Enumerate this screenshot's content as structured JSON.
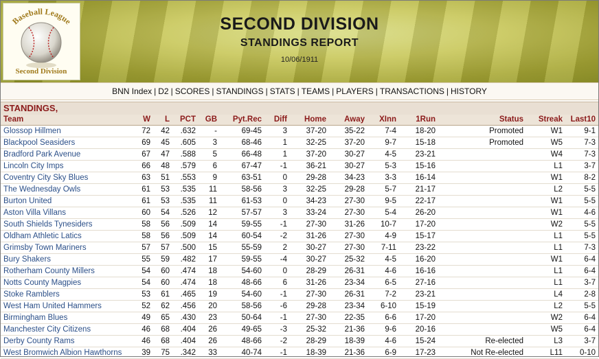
{
  "header": {
    "title": "SECOND DIVISION",
    "subtitle": "STANDINGS REPORT",
    "date": "10/06/1911",
    "logo_top_text": "Baseball League",
    "logo_bottom_text": "Second Division"
  },
  "nav": {
    "links": [
      "BNN Index",
      "D2",
      "SCORES",
      "STANDINGS",
      "STATS",
      "TEAMS",
      "PLAYERS",
      "TRANSACTIONS",
      "HISTORY"
    ]
  },
  "section_title": "STANDINGS,",
  "columns": [
    "Team",
    "W",
    "L",
    "PCT",
    "GB",
    "Pyt.Rec",
    "Diff",
    "Home",
    "Away",
    "XInn",
    "1Run",
    "Status",
    "Streak",
    "Last10"
  ],
  "rows": [
    [
      "Glossop Hillmen",
      "72",
      "42",
      ".632",
      "-",
      "69-45",
      "3",
      "37-20",
      "35-22",
      "7-4",
      "18-20",
      "Promoted",
      "W1",
      "9-1"
    ],
    [
      "Blackpool Seasiders",
      "69",
      "45",
      ".605",
      "3",
      "68-46",
      "1",
      "32-25",
      "37-20",
      "9-7",
      "15-18",
      "Promoted",
      "W5",
      "7-3"
    ],
    [
      "Bradford Park Avenue",
      "67",
      "47",
      ".588",
      "5",
      "66-48",
      "1",
      "37-20",
      "30-27",
      "4-5",
      "23-21",
      "",
      "W4",
      "7-3"
    ],
    [
      "Lincoln City Imps",
      "66",
      "48",
      ".579",
      "6",
      "67-47",
      "-1",
      "36-21",
      "30-27",
      "5-3",
      "15-16",
      "",
      "L1",
      "3-7"
    ],
    [
      "Coventry City Sky Blues",
      "63",
      "51",
      ".553",
      "9",
      "63-51",
      "0",
      "29-28",
      "34-23",
      "3-3",
      "16-14",
      "",
      "W1",
      "8-2"
    ],
    [
      "The Wednesday Owls",
      "61",
      "53",
      ".535",
      "11",
      "58-56",
      "3",
      "32-25",
      "29-28",
      "5-7",
      "21-17",
      "",
      "L2",
      "5-5"
    ],
    [
      "Burton United",
      "61",
      "53",
      ".535",
      "11",
      "61-53",
      "0",
      "34-23",
      "27-30",
      "9-5",
      "22-17",
      "",
      "W1",
      "5-5"
    ],
    [
      "Aston Villa Villans",
      "60",
      "54",
      ".526",
      "12",
      "57-57",
      "3",
      "33-24",
      "27-30",
      "5-4",
      "26-20",
      "",
      "W1",
      "4-6"
    ],
    [
      "South Shields Tynesiders",
      "58",
      "56",
      ".509",
      "14",
      "59-55",
      "-1",
      "27-30",
      "31-26",
      "10-7",
      "17-20",
      "",
      "W2",
      "5-5"
    ],
    [
      "Oldham Athletic Latics",
      "58",
      "56",
      ".509",
      "14",
      "60-54",
      "-2",
      "31-26",
      "27-30",
      "4-9",
      "15-17",
      "",
      "L1",
      "5-5"
    ],
    [
      "Grimsby Town Mariners",
      "57",
      "57",
      ".500",
      "15",
      "55-59",
      "2",
      "30-27",
      "27-30",
      "7-11",
      "23-22",
      "",
      "L1",
      "7-3"
    ],
    [
      "Bury Shakers",
      "55",
      "59",
      ".482",
      "17",
      "59-55",
      "-4",
      "30-27",
      "25-32",
      "4-5",
      "16-20",
      "",
      "W1",
      "6-4"
    ],
    [
      "Rotherham County Millers",
      "54",
      "60",
      ".474",
      "18",
      "54-60",
      "0",
      "28-29",
      "26-31",
      "4-6",
      "16-16",
      "",
      "L1",
      "6-4"
    ],
    [
      "Notts County Magpies",
      "54",
      "60",
      ".474",
      "18",
      "48-66",
      "6",
      "31-26",
      "23-34",
      "6-5",
      "27-16",
      "",
      "L1",
      "3-7"
    ],
    [
      "Stoke Ramblers",
      "53",
      "61",
      ".465",
      "19",
      "54-60",
      "-1",
      "27-30",
      "26-31",
      "7-2",
      "23-21",
      "",
      "L4",
      "2-8"
    ],
    [
      "West Ham United Hammers",
      "52",
      "62",
      ".456",
      "20",
      "58-56",
      "-6",
      "29-28",
      "23-34",
      "6-10",
      "15-19",
      "",
      "L2",
      "5-5"
    ],
    [
      "Birmingham Blues",
      "49",
      "65",
      ".430",
      "23",
      "50-64",
      "-1",
      "27-30",
      "22-35",
      "6-6",
      "17-20",
      "",
      "W2",
      "6-4"
    ],
    [
      "Manchester City Citizens",
      "46",
      "68",
      ".404",
      "26",
      "49-65",
      "-3",
      "25-32",
      "21-36",
      "9-6",
      "20-16",
      "",
      "W5",
      "6-4"
    ],
    [
      "Derby County Rams",
      "46",
      "68",
      ".404",
      "26",
      "48-66",
      "-2",
      "28-29",
      "18-39",
      "4-6",
      "15-24",
      "Re-elected",
      "L3",
      "3-7"
    ],
    [
      "West Bromwich Albion Hawthorns",
      "39",
      "75",
      ".342",
      "33",
      "40-74",
      "-1",
      "18-39",
      "21-36",
      "6-9",
      "17-23",
      "Not Re-elected",
      "L11",
      "0-10"
    ]
  ]
}
